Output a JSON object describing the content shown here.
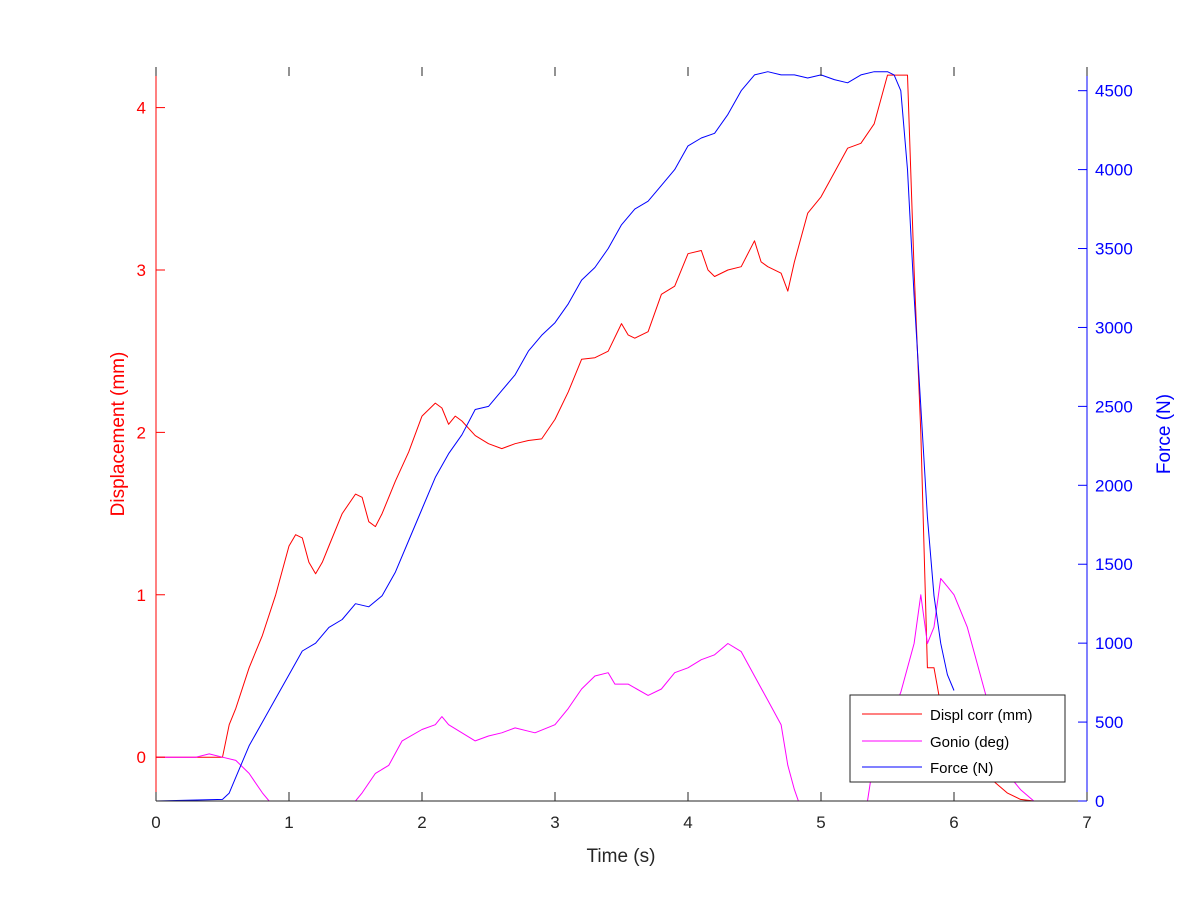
{
  "chart_data": {
    "type": "line",
    "xlabel": "Time (s)",
    "ylabel_left": "Displacement (mm)",
    "ylabel_right": "Force (N)",
    "xlim": [
      0,
      7
    ],
    "ylim_left": [
      -0.27,
      4.25
    ],
    "ylim_right": [
      0,
      4650
    ],
    "xticks": [
      0,
      1,
      2,
      3,
      4,
      5,
      6,
      7
    ],
    "yticks_left": [
      0,
      1,
      2,
      3,
      4
    ],
    "yticks_right": [
      0,
      500,
      1000,
      1500,
      2000,
      2500,
      3000,
      3500,
      4000,
      4500
    ],
    "grid": false,
    "legend_position": "bottom-right",
    "colors": {
      "left_axis": "#ff0000",
      "right_axis": "#0000ff",
      "x_axis": "#262626"
    },
    "series": [
      {
        "name": "Displ corr (mm)",
        "axis": "left",
        "color": "#ff0000",
        "x": [
          0,
          0.5,
          0.55,
          0.6,
          0.7,
          0.8,
          0.9,
          1.0,
          1.05,
          1.1,
          1.15,
          1.2,
          1.25,
          1.3,
          1.4,
          1.5,
          1.55,
          1.6,
          1.65,
          1.7,
          1.8,
          1.9,
          2.0,
          2.1,
          2.15,
          2.2,
          2.25,
          2.3,
          2.4,
          2.5,
          2.6,
          2.7,
          2.8,
          2.9,
          3.0,
          3.1,
          3.2,
          3.3,
          3.4,
          3.5,
          3.55,
          3.6,
          3.7,
          3.8,
          3.9,
          4.0,
          4.1,
          4.15,
          4.2,
          4.3,
          4.4,
          4.5,
          4.55,
          4.6,
          4.7,
          4.75,
          4.8,
          4.9,
          5.0,
          5.1,
          5.2,
          5.3,
          5.4,
          5.5,
          5.55,
          5.6,
          5.65,
          5.7,
          5.75,
          5.8,
          5.85,
          5.9,
          6.0,
          6.1,
          6.2,
          6.3,
          6.4,
          6.5,
          6.6,
          6.7
        ],
        "values": [
          0,
          0,
          0.2,
          0.3,
          0.55,
          0.75,
          1.0,
          1.3,
          1.37,
          1.35,
          1.2,
          1.13,
          1.2,
          1.3,
          1.5,
          1.62,
          1.6,
          1.45,
          1.42,
          1.5,
          1.7,
          1.88,
          2.1,
          2.18,
          2.15,
          2.05,
          2.1,
          2.07,
          1.98,
          1.93,
          1.9,
          1.93,
          1.95,
          1.96,
          2.08,
          2.25,
          2.45,
          2.46,
          2.5,
          2.67,
          2.6,
          2.58,
          2.62,
          2.85,
          2.9,
          3.1,
          3.12,
          3.0,
          2.96,
          3.0,
          3.02,
          3.18,
          3.05,
          3.02,
          2.98,
          2.87,
          3.05,
          3.35,
          3.45,
          3.6,
          3.75,
          3.78,
          3.9,
          4.2,
          4.2,
          4.2,
          4.2,
          3.0,
          2.0,
          0.55,
          0.55,
          0.32,
          0.15,
          0.0,
          -0.1,
          -0.15,
          -0.22,
          -0.26,
          -0.27,
          -0.27
        ]
      },
      {
        "name": "Gonio (deg)",
        "axis": "left",
        "color": "#ff00ff",
        "x": [
          0,
          0.3,
          0.4,
          0.5,
          0.6,
          0.7,
          0.8,
          0.85,
          1.0,
          1.05,
          1.1,
          1.5,
          1.55,
          1.65,
          1.75,
          1.85,
          2.0,
          2.1,
          2.15,
          2.2,
          2.3,
          2.4,
          2.5,
          2.6,
          2.7,
          2.8,
          2.85,
          3.0,
          3.1,
          3.2,
          3.3,
          3.4,
          3.45,
          3.55,
          3.7,
          3.8,
          3.9,
          4.0,
          4.1,
          4.2,
          4.3,
          4.4,
          4.5,
          4.6,
          4.7,
          4.75,
          4.8,
          4.83,
          5.35,
          5.4,
          5.5,
          5.6,
          5.7,
          5.75,
          5.8,
          5.85,
          5.9,
          5.95,
          6.0,
          6.1,
          6.2,
          6.3,
          6.4,
          6.5,
          6.6
        ],
        "values": [
          0.0,
          0.0,
          0.02,
          0.0,
          -0.02,
          -0.1,
          -0.22,
          -0.27,
          -0.27,
          -0.27,
          -0.27,
          -0.27,
          -0.22,
          -0.1,
          -0.05,
          0.1,
          0.17,
          0.2,
          0.25,
          0.2,
          0.15,
          0.1,
          0.13,
          0.15,
          0.18,
          0.16,
          0.15,
          0.2,
          0.3,
          0.42,
          0.5,
          0.52,
          0.45,
          0.45,
          0.38,
          0.42,
          0.52,
          0.55,
          0.6,
          0.63,
          0.7,
          0.65,
          0.5,
          0.35,
          0.2,
          -0.05,
          -0.2,
          -0.27,
          -0.27,
          0.0,
          0.2,
          0.4,
          0.7,
          1.0,
          0.7,
          0.8,
          1.1,
          1.05,
          1.0,
          0.8,
          0.5,
          0.2,
          -0.1,
          -0.2,
          -0.27
        ]
      },
      {
        "name": "Force (N)",
        "axis": "right",
        "color": "#0000ff",
        "x": [
          0,
          0.5,
          0.55,
          0.6,
          0.7,
          0.8,
          0.9,
          1.0,
          1.1,
          1.2,
          1.3,
          1.4,
          1.5,
          1.6,
          1.7,
          1.8,
          1.9,
          2.0,
          2.1,
          2.2,
          2.3,
          2.4,
          2.5,
          2.6,
          2.7,
          2.8,
          2.9,
          3.0,
          3.1,
          3.2,
          3.3,
          3.4,
          3.5,
          3.6,
          3.7,
          3.8,
          3.9,
          4.0,
          4.1,
          4.2,
          4.3,
          4.4,
          4.5,
          4.6,
          4.7,
          4.8,
          4.9,
          5.0,
          5.1,
          5.2,
          5.3,
          5.4,
          5.5,
          5.55,
          5.6,
          5.65,
          5.7,
          5.75,
          5.8,
          5.85,
          5.9,
          5.95,
          6.0
        ],
        "values": [
          0,
          10,
          50,
          150,
          350,
          500,
          650,
          800,
          950,
          1000,
          1100,
          1150,
          1250,
          1230,
          1300,
          1450,
          1650,
          1850,
          2050,
          2200,
          2320,
          2480,
          2500,
          2600,
          2700,
          2850,
          2950,
          3030,
          3150,
          3300,
          3380,
          3500,
          3650,
          3750,
          3800,
          3900,
          4000,
          4150,
          4200,
          4230,
          4350,
          4500,
          4600,
          4620,
          4600,
          4600,
          4580,
          4600,
          4570,
          4550,
          4600,
          4620,
          4620,
          4600,
          4500,
          4000,
          3200,
          2500,
          1800,
          1300,
          1000,
          800,
          700
        ]
      }
    ]
  }
}
